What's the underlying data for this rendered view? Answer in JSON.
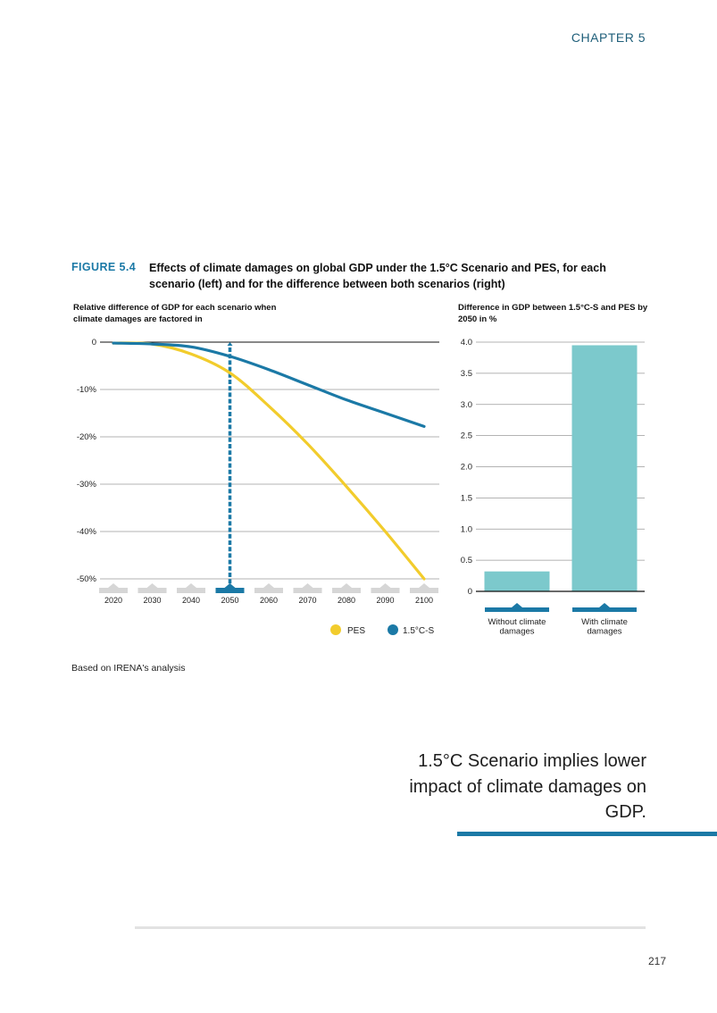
{
  "header": {
    "chapter": "CHAPTER 5"
  },
  "figure": {
    "label": "FIGURE 5.4",
    "title": "Effects of climate damages on global GDP under the 1.5°C Scenario and PES, for each scenario (left) and for the difference between both scenarios (right)",
    "source": "Based on IRENA's analysis"
  },
  "colors": {
    "pes": "#f2cc2c",
    "scenario15": "#1b79a6",
    "bar": "#7cc9cc",
    "grid": "#9a9a9a",
    "tab": "#d6d6d6"
  },
  "chart_data": [
    {
      "type": "line",
      "subtitle": "Relative difference of GDP for each scenario when climate damages are factored in",
      "x": [
        2020,
        2030,
        2040,
        2050,
        2060,
        2070,
        2080,
        2090,
        2100
      ],
      "x_tick_labels": [
        "2020",
        "2030",
        "2040",
        "2050",
        "2060",
        "2070",
        "2080",
        "2090",
        "2100"
      ],
      "highlighted_x": 2050,
      "ylim": [
        -50,
        0
      ],
      "y_ticks": [
        0,
        -10,
        -20,
        -30,
        -40,
        -50
      ],
      "y_tick_labels": [
        "0",
        "-10%",
        "-20%",
        "-30%",
        "-40%",
        "-50%"
      ],
      "series": [
        {
          "name": "PES",
          "values": [
            -0.2,
            -0.4,
            -2.5,
            -6.5,
            -13.5,
            -21.5,
            -30.5,
            -40.0,
            -50.0
          ]
        },
        {
          "name": "1.5°C-S",
          "values": [
            -0.2,
            -0.4,
            -1.0,
            -3.0,
            -5.8,
            -9.0,
            -12.2,
            -15.0,
            -17.8
          ]
        }
      ],
      "legend": [
        "PES",
        "1.5°C-S"
      ]
    },
    {
      "type": "bar",
      "subtitle": "Difference in GDP between 1.5°C-S and PES by 2050 in %",
      "categories": [
        "Without climate damages",
        "With climate damages"
      ],
      "values": [
        0.32,
        3.95
      ],
      "ylim": [
        0,
        4.0
      ],
      "y_ticks": [
        0,
        0.5,
        1.0,
        1.5,
        2.0,
        2.5,
        3.0,
        3.5,
        4.0
      ],
      "y_tick_labels": [
        "0",
        "0.5",
        "1.0",
        "1.5",
        "2.0",
        "2.5",
        "3.0",
        "3.5",
        "4.0"
      ]
    }
  ],
  "callout": {
    "text": "1.5°C Scenario implies lower impact of climate damages on GDP."
  },
  "footer": {
    "page_number": "217"
  }
}
